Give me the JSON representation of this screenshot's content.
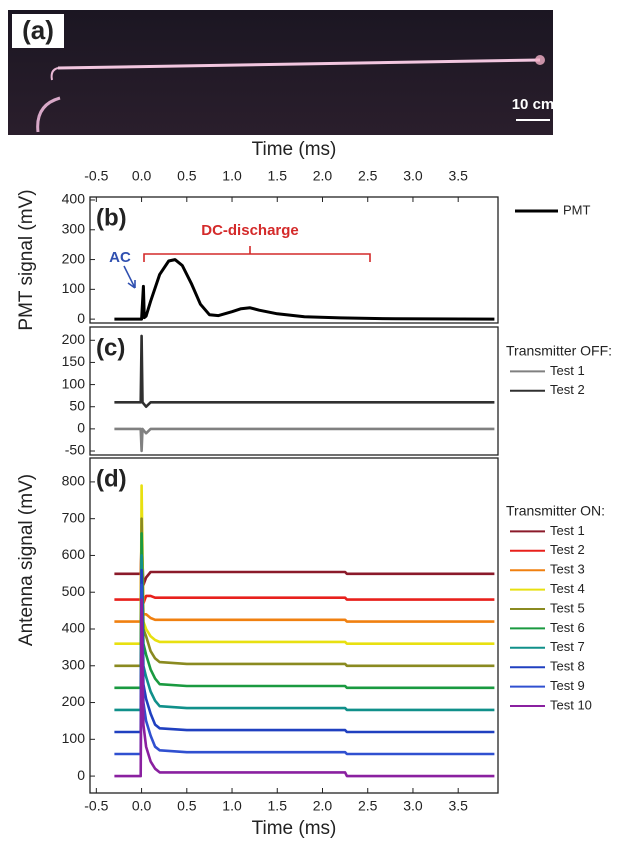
{
  "panel_a": {
    "label": "(a)",
    "scale_label": "10 cm"
  },
  "chart_data": [
    {
      "type": "line",
      "panel_label": "(b)",
      "xlabel": "Time (ms)",
      "ylabel": "PMT signal (mV)",
      "xlim": [
        -0.57,
        3.94
      ],
      "ylim": [
        -13,
        410
      ],
      "xticks": [
        -0.5,
        {
          "value": 0,
          "label": "0.0"
        },
        0.5,
        {
          "value": 1,
          "label": "1.0"
        },
        1.5,
        {
          "value": 2,
          "label": "2.0"
        },
        2.5,
        {
          "value": 3,
          "label": "3.0"
        },
        3.5
      ],
      "yticks": [
        0,
        100,
        200,
        300,
        400
      ],
      "annotations": [
        "AC",
        "DC-discharge"
      ],
      "x": [
        -0.3,
        0,
        0.02,
        0.03,
        0.05,
        0.1,
        0.2,
        0.3,
        0.37,
        0.45,
        0.55,
        0.65,
        0.75,
        0.85,
        1.0,
        1.1,
        1.2,
        1.3,
        1.5,
        1.8,
        2.2,
        2.8,
        3.9
      ],
      "series": [
        {
          "name": "PMT",
          "color": "#000000",
          "values": [
            0,
            0,
            110,
            5,
            10,
            60,
            150,
            195,
            200,
            180,
            120,
            50,
            15,
            12,
            25,
            35,
            38,
            30,
            18,
            8,
            4,
            1,
            0
          ]
        }
      ]
    },
    {
      "type": "line",
      "panel_label": "(c)",
      "xlim": [
        -0.57,
        3.94
      ],
      "ylim": [
        -59,
        230
      ],
      "yticks": [
        -50,
        0,
        50,
        100,
        150,
        200
      ],
      "legend_title": "Transmitter  OFF:",
      "x": [
        -0.3,
        -0.01,
        0,
        0.01,
        0.05,
        0.1,
        3.9
      ],
      "series": [
        {
          "name": "Test 1",
          "color": "#808080",
          "values": [
            0,
            0,
            -50,
            0,
            -10,
            0,
            0
          ]
        },
        {
          "name": "Test 2",
          "color": "#303030",
          "values": [
            60,
            60,
            210,
            60,
            50,
            60,
            60
          ]
        }
      ]
    },
    {
      "type": "line",
      "panel_label": "(d)",
      "xlabel": "Time (ms)",
      "ylabel": "Antenna signal (mV)",
      "xlim": [
        -0.57,
        3.94
      ],
      "ylim": [
        -46,
        865
      ],
      "xticks": [
        -0.5,
        {
          "value": 0,
          "label": "0.0"
        },
        0.5,
        {
          "value": 1,
          "label": "1.0"
        },
        1.5,
        {
          "value": 2,
          "label": "2.0"
        },
        2.5,
        {
          "value": 3,
          "label": "3.0"
        },
        3.5
      ],
      "yticks": [
        0,
        100,
        200,
        300,
        400,
        500,
        600,
        700,
        800
      ],
      "legend_title": "Transmitter  ON:",
      "x": [
        -0.3,
        -0.01,
        0,
        0.02,
        0.05,
        0.1,
        0.15,
        0.2,
        0.5,
        1.0,
        1.5,
        2.0,
        2.25,
        2.27,
        2.5,
        3.0,
        3.9
      ],
      "series": [
        {
          "name": "Test 1",
          "color": "#8b1a2a",
          "values": [
            550,
            550,
            640,
            520,
            540,
            555,
            555,
            555,
            555,
            555,
            555,
            555,
            555,
            550,
            550,
            550,
            550
          ]
        },
        {
          "name": "Test 2",
          "color": "#e8201c",
          "values": [
            480,
            480,
            650,
            470,
            490,
            490,
            485,
            485,
            485,
            485,
            485,
            485,
            485,
            480,
            480,
            480,
            480
          ]
        },
        {
          "name": "Test 3",
          "color": "#f08010",
          "values": [
            420,
            420,
            680,
            440,
            440,
            430,
            425,
            425,
            425,
            425,
            425,
            425,
            425,
            420,
            420,
            420,
            420
          ]
        },
        {
          "name": "Test 4",
          "color": "#e8e010",
          "values": [
            360,
            360,
            790,
            420,
            400,
            380,
            370,
            365,
            365,
            365,
            365,
            365,
            365,
            360,
            360,
            360,
            360
          ]
        },
        {
          "name": "Test 5",
          "color": "#8a8a20",
          "values": [
            300,
            300,
            700,
            400,
            380,
            340,
            320,
            310,
            305,
            305,
            305,
            305,
            305,
            300,
            300,
            300,
            300
          ]
        },
        {
          "name": "Test 6",
          "color": "#1a9a40",
          "values": [
            240,
            240,
            660,
            360,
            330,
            290,
            265,
            250,
            245,
            245,
            245,
            245,
            245,
            240,
            240,
            240,
            240
          ]
        },
        {
          "name": "Test 7",
          "color": "#10908a",
          "values": [
            180,
            180,
            600,
            300,
            270,
            230,
            205,
            190,
            185,
            185,
            185,
            185,
            185,
            180,
            180,
            180,
            180
          ]
        },
        {
          "name": "Test 8",
          "color": "#2040c0",
          "values": [
            120,
            120,
            560,
            250,
            210,
            170,
            140,
            130,
            125,
            125,
            125,
            125,
            125,
            120,
            120,
            120,
            120
          ]
        },
        {
          "name": "Test 9",
          "color": "#3050d0",
          "values": [
            60,
            60,
            520,
            200,
            150,
            110,
            80,
            70,
            65,
            65,
            65,
            65,
            65,
            60,
            60,
            60,
            60
          ]
        },
        {
          "name": "Test 10",
          "color": "#8a20a0",
          "values": [
            0,
            0,
            480,
            140,
            80,
            40,
            20,
            10,
            10,
            10,
            10,
            10,
            10,
            0,
            0,
            0,
            0
          ]
        }
      ]
    }
  ]
}
